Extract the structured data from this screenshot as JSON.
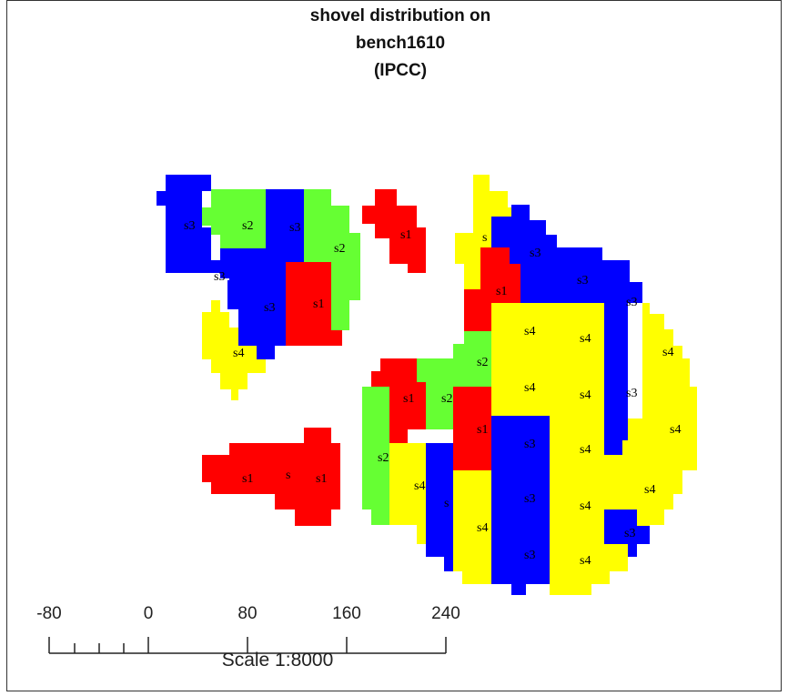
{
  "title": {
    "line1": "shovel distribution on",
    "line2": "bench1610",
    "line3": "(IPCC)"
  },
  "legend_colors": {
    "s1": "#ff0000",
    "s2": "#66ff33",
    "s3": "#0000ff",
    "s4": "#ffff00"
  },
  "zone_labels": [
    "s1",
    "s2",
    "s3",
    "s4",
    "s"
  ],
  "scale": {
    "ticks": [
      "-80",
      "0",
      "80",
      "160",
      "240"
    ],
    "caption": "Scale 1:8000"
  }
}
